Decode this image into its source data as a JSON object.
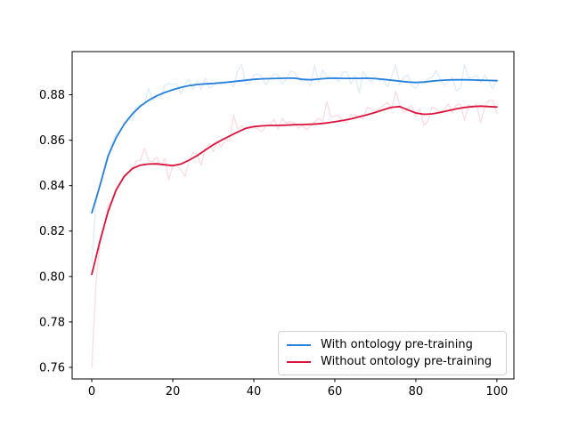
{
  "chart_data": {
    "type": "line",
    "title": "",
    "xlabel": "",
    "ylabel": "",
    "grid": false,
    "legend_position": "lower right",
    "xlim": [
      -4.85,
      104.2
    ],
    "ylim": [
      0.7549,
      0.899
    ],
    "xticks": [
      "0",
      "20",
      "40",
      "60",
      "80",
      "100"
    ],
    "yticks": [
      "0.76",
      "0.78",
      "0.80",
      "0.82",
      "0.84",
      "0.86",
      "0.88"
    ],
    "x": [
      0,
      2,
      4,
      6,
      8,
      10,
      12,
      14,
      16,
      18,
      20,
      22,
      24,
      26,
      28,
      30,
      32,
      34,
      36,
      38,
      40,
      42,
      44,
      46,
      48,
      50,
      52,
      54,
      56,
      58,
      60,
      62,
      64,
      66,
      68,
      70,
      72,
      74,
      76,
      78,
      80,
      82,
      84,
      86,
      88,
      90,
      92,
      94,
      96,
      98,
      100
    ],
    "series": [
      {
        "name": "With ontology pre-training",
        "color": "#2680dd",
        "values": [
          0.828,
          0.84,
          0.853,
          0.861,
          0.867,
          0.8715,
          0.875,
          0.8775,
          0.8795,
          0.881,
          0.8822,
          0.8832,
          0.884,
          0.8845,
          0.8848,
          0.885,
          0.8853,
          0.8856,
          0.886,
          0.8864,
          0.8868,
          0.887,
          0.8871,
          0.8872,
          0.8873,
          0.8873,
          0.8868,
          0.8866,
          0.8869,
          0.8872,
          0.8873,
          0.8872,
          0.8872,
          0.8872,
          0.8873,
          0.8871,
          0.8868,
          0.8864,
          0.886,
          0.8856,
          0.8854,
          0.8856,
          0.886,
          0.8863,
          0.8865,
          0.8866,
          0.8866,
          0.8865,
          0.8864,
          0.8863,
          0.8862
        ]
      },
      {
        "name": "Without ontology pre-training",
        "color": "#dc143c",
        "values": [
          0.801,
          0.8155,
          0.8285,
          0.838,
          0.844,
          0.8475,
          0.849,
          0.8495,
          0.8496,
          0.8492,
          0.8488,
          0.8495,
          0.8512,
          0.8532,
          0.8556,
          0.858,
          0.86,
          0.8618,
          0.8636,
          0.8652,
          0.866,
          0.8663,
          0.8665,
          0.8665,
          0.8666,
          0.8668,
          0.8669,
          0.867,
          0.8672,
          0.8676,
          0.8681,
          0.8687,
          0.8694,
          0.8703,
          0.8712,
          0.8722,
          0.8734,
          0.8745,
          0.8748,
          0.8734,
          0.872,
          0.8714,
          0.8716,
          0.8722,
          0.873,
          0.8738,
          0.8744,
          0.8748,
          0.875,
          0.8748,
          0.8746
        ]
      }
    ],
    "raw_overlay": {
      "alpha": 0.14,
      "jitter": 0.0032,
      "blue_start": 0.806,
      "red_start": 0.76,
      "spikes": [
        {
          "series": 0,
          "x": 36,
          "value": 0.8905
        },
        {
          "series": 0,
          "x": 57,
          "value": 0.891
        },
        {
          "series": 0,
          "x": 75,
          "value": 0.8932
        },
        {
          "series": 0,
          "x": 85,
          "value": 0.8905
        },
        {
          "series": 1,
          "x": 13,
          "value": 0.8565
        },
        {
          "series": 1,
          "x": 19,
          "value": 0.8425
        },
        {
          "series": 1,
          "x": 35,
          "value": 0.871
        },
        {
          "series": 1,
          "x": 58,
          "value": 0.877
        },
        {
          "series": 1,
          "x": 75,
          "value": 0.8815
        },
        {
          "series": 1,
          "x": 82,
          "value": 0.8665
        }
      ]
    }
  },
  "legend": {
    "entries": [
      {
        "label": "With ontology pre-training"
      },
      {
        "label": "Without ontology pre-training"
      }
    ]
  }
}
